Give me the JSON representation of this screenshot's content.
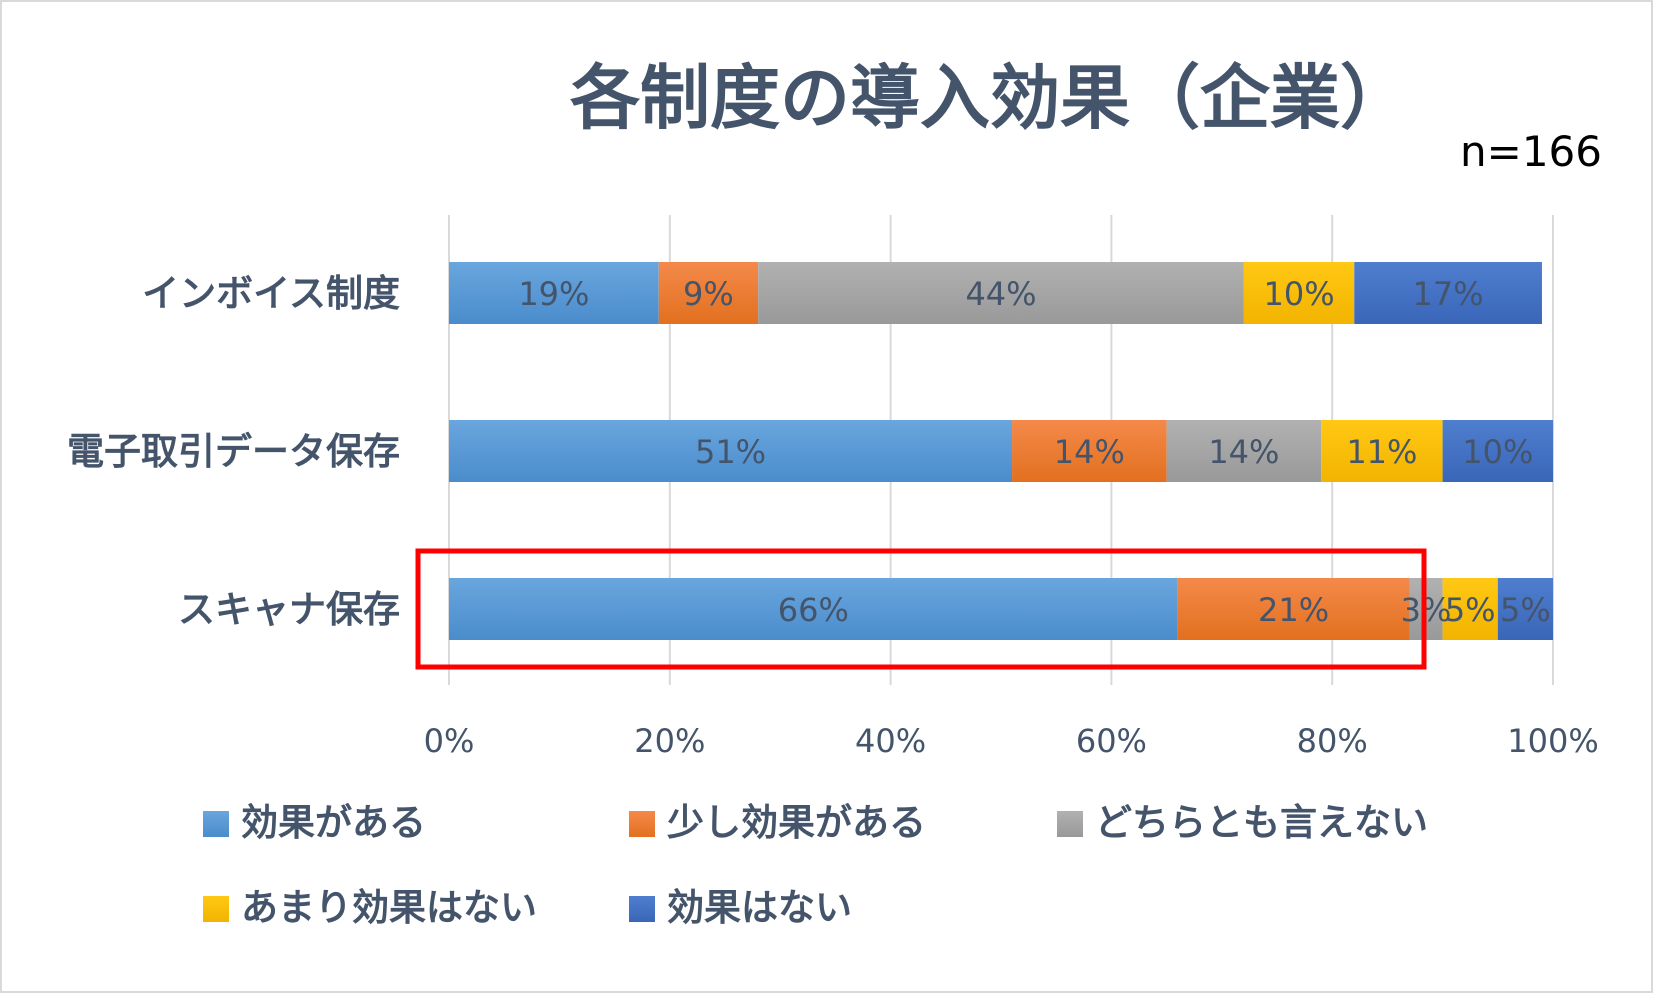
{
  "chart_data": {
    "type": "bar",
    "orientation": "horizontal",
    "stacked": true,
    "title": "各制度の導入効果（企業）",
    "sample_size": "n=166",
    "categories": [
      "インボイス制度",
      "電子取引データ保存",
      "スキャナ保存"
    ],
    "series": [
      {
        "name": "効果がある",
        "values": [
          19,
          51,
          66
        ],
        "labels": [
          "19%",
          "51%",
          "66%"
        ],
        "color": "#5b9bd5"
      },
      {
        "name": "少し効果がある",
        "values": [
          9,
          14,
          21
        ],
        "labels": [
          "9%",
          "14%",
          "21%"
        ],
        "color": "#ed7d31"
      },
      {
        "name": "どちらとも言えない",
        "values": [
          44,
          14,
          3
        ],
        "labels": [
          "44%",
          "14%",
          "3%"
        ],
        "color": "#a5a5a5"
      },
      {
        "name": "あまり効果はない",
        "values": [
          10,
          11,
          5
        ],
        "labels": [
          "10%",
          "11%",
          "5%"
        ],
        "color": "#ffc000"
      },
      {
        "name": "効果はない",
        "values": [
          17,
          10,
          5
        ],
        "labels": [
          "17%",
          "10%",
          "5%"
        ],
        "color": "#4472c4"
      }
    ],
    "xlim": [
      0,
      100
    ],
    "xticks": [
      "0%",
      "20%",
      "40%",
      "60%",
      "80%",
      "100%"
    ],
    "grid": true,
    "legend_position": "bottom",
    "highlight_category": "スキャナ保存",
    "highlight_color": "#ff0000",
    "text_color": "#44546a"
  }
}
